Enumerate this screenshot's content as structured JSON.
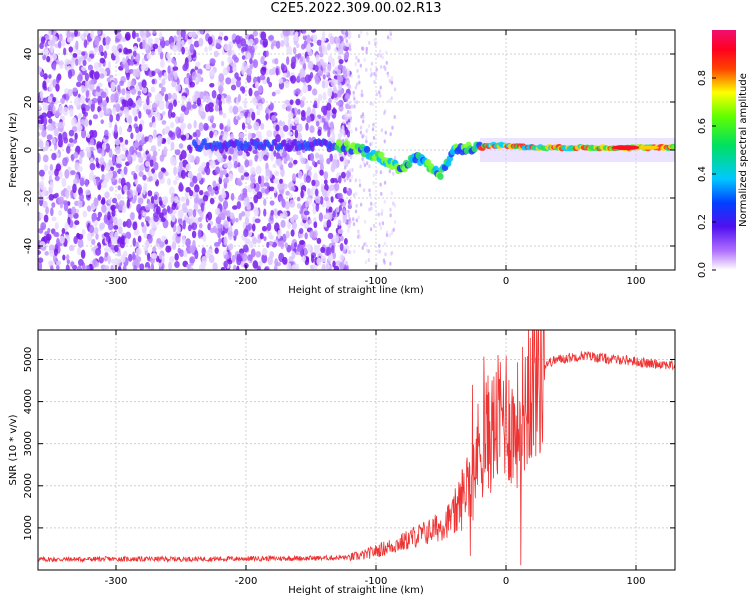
{
  "title": "C2E5.2022.309.00.02.R13",
  "chart_data": [
    {
      "type": "heatmap",
      "xlabel": "Height of straight line (km)",
      "ylabel": "Frequency (Hz)",
      "xlim": [
        -360,
        130
      ],
      "ylim": [
        -50,
        50
      ],
      "xticks": [
        -300,
        -200,
        -100,
        0,
        100
      ],
      "yticks": [
        -40,
        -20,
        0,
        20,
        40
      ],
      "xtick_labels": [
        "-300",
        "-200",
        "-100",
        "0",
        "100"
      ],
      "ytick_labels": [
        "-40",
        "-20",
        "0",
        "20",
        "40"
      ],
      "grid": true,
      "colorbar": {
        "label": "Normalized spectral amplitude",
        "range": [
          0,
          1
        ],
        "ticks": [
          0.0,
          0.2,
          0.4,
          0.6,
          0.8
        ],
        "tick_labels": [
          "0.0",
          "0.2",
          "0.4",
          "0.6",
          "0.8"
        ],
        "colormap": "white-purple-blue-cyan-green-yellow-red-magenta"
      },
      "signal_track": {
        "description_points_x": [
          -240,
          -130,
          -110,
          -90,
          -80,
          -70,
          -60,
          -50,
          -45,
          -40,
          -30,
          -20,
          -10,
          0,
          20,
          50,
          80,
          100,
          130
        ],
        "description_points_y": [
          2,
          2,
          0,
          -5,
          -8,
          -3,
          -6,
          -10,
          -5,
          0,
          1,
          1,
          2,
          2,
          1,
          1,
          1,
          1,
          1
        ]
      },
      "colors": {
        "noise": "#8a2be2",
        "track_low": "#2040ff",
        "track_mid": "#30e060",
        "track_high": "#ff2020"
      }
    },
    {
      "type": "line",
      "xlabel": "Height of straight line (km)",
      "ylabel": "SNR (10 * v/v)",
      "xlim": [
        -360,
        130
      ],
      "ylim": [
        0,
        5700
      ],
      "xticks": [
        -300,
        -200,
        -100,
        0,
        100
      ],
      "yticks": [
        1000,
        2000,
        3000,
        4000,
        5000
      ],
      "xtick_labels": [
        "-300",
        "-200",
        "-100",
        "0",
        "100"
      ],
      "ytick_labels": [
        "1000",
        "2000",
        "3000",
        "4000",
        "5000"
      ],
      "grid": true,
      "series_color": "#ee3333",
      "x": [
        -360,
        -300,
        -250,
        -200,
        -150,
        -120,
        -110,
        -100,
        -90,
        -80,
        -70,
        -60,
        -50,
        -40,
        -35,
        -30,
        -25,
        -20,
        -15,
        -10,
        -5,
        0,
        5,
        10,
        15,
        20,
        25,
        30,
        40,
        50,
        60,
        70,
        80,
        90,
        100,
        110,
        120,
        130
      ],
      "y": [
        250,
        260,
        260,
        270,
        280,
        300,
        350,
        450,
        550,
        650,
        800,
        900,
        1050,
        1300,
        1600,
        2100,
        2600,
        2900,
        3200,
        3300,
        3600,
        3800,
        3300,
        3500,
        4000,
        4500,
        4700,
        4900,
        5000,
        5050,
        5100,
        5050,
        5000,
        5000,
        4950,
        4900,
        4900,
        4850
      ]
    }
  ]
}
